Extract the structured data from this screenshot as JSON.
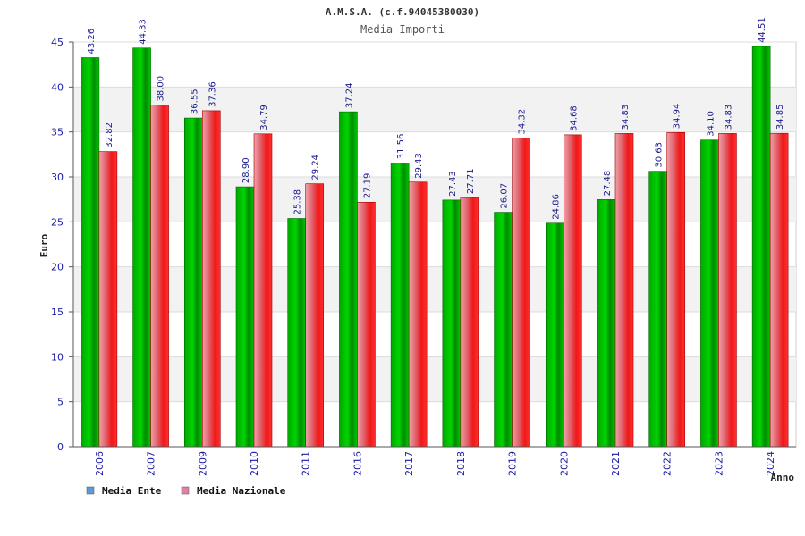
{
  "colors": {
    "ente": "#00c000",
    "nazionale": "#f01818",
    "legend_ente": "#5b9bd5",
    "legend_nazionale": "#e080a8",
    "band": "#f2f2f2",
    "grid": "#dcdcdc",
    "tick_text": "#1a1aa6"
  },
  "chart_data": {
    "type": "bar",
    "title": "A.M.S.A. (c.f.94045380030)",
    "subtitle": "Media Importi",
    "xlabel": "Anno",
    "ylabel": "Euro",
    "ylim": [
      0,
      45
    ],
    "yticks": [
      0,
      5,
      10,
      15,
      20,
      25,
      30,
      35,
      40,
      45
    ],
    "grid": true,
    "legend_position": "bottom-left",
    "categories": [
      "2006",
      "2007",
      "2009",
      "2010",
      "2011",
      "2016",
      "2017",
      "2018",
      "2019",
      "2020",
      "2021",
      "2022",
      "2023",
      "2024"
    ],
    "series": [
      {
        "name": "Media Ente",
        "values": [
          43.26,
          44.33,
          36.55,
          28.9,
          25.38,
          37.24,
          31.56,
          27.43,
          26.07,
          24.86,
          27.48,
          30.63,
          34.1,
          44.51
        ],
        "labels": [
          "43.26",
          "44.33",
          "36.55",
          "28.90",
          "25.38",
          "37.24",
          "31.56",
          "27.43",
          "26.07",
          "24.86",
          "27.48",
          "30.63",
          "34.10",
          "44.51"
        ]
      },
      {
        "name": "Media Nazionale",
        "values": [
          32.82,
          38.0,
          37.36,
          34.79,
          29.24,
          27.19,
          29.43,
          27.71,
          34.32,
          34.68,
          34.83,
          34.94,
          34.83,
          34.85
        ],
        "labels": [
          "32.82",
          "38.00",
          "37.36",
          "34.79",
          "29.24",
          "27.19",
          "29.43",
          "27.71",
          "34.32",
          "34.68",
          "34.83",
          "34.94",
          "34.83",
          "34.85"
        ]
      }
    ]
  }
}
